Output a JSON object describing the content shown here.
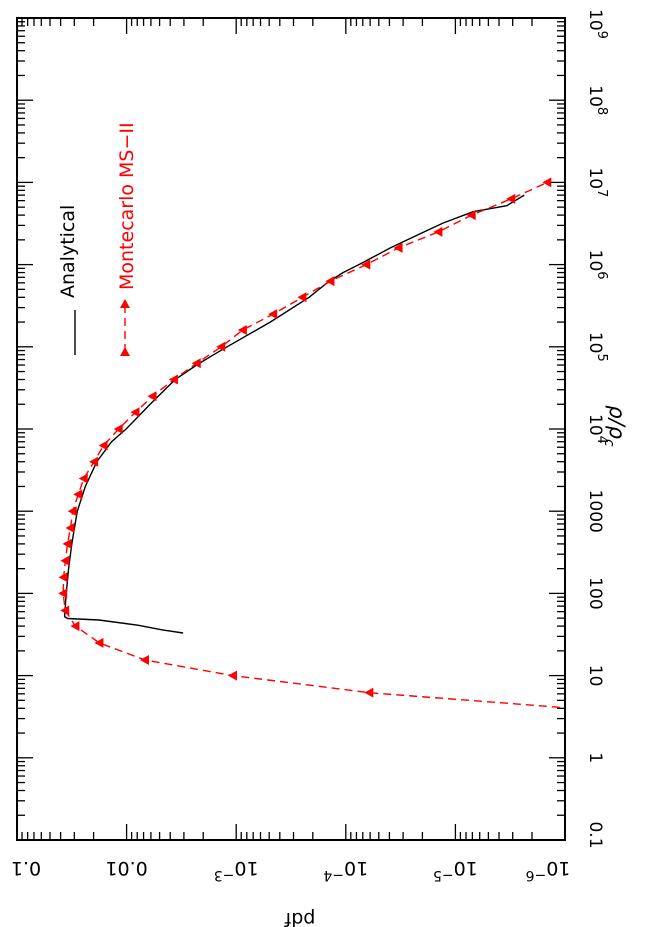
{
  "chart_data": {
    "type": "line",
    "xlabel": "pdf",
    "ylabel_main": "ρ/ρ",
    "ylabel_sub": "c",
    "x_scale": "log",
    "y_scale": "log",
    "xlim": [
      0.1,
      1e-06
    ],
    "ylim": [
      0.1,
      1000000000.0
    ],
    "x_ticks": [
      {
        "value": 0.1,
        "label": "0.1",
        "exp": ""
      },
      {
        "value": 0.01,
        "label": "0.01",
        "exp": ""
      },
      {
        "value": 0.001,
        "label": "10",
        "exp": "−3"
      },
      {
        "value": 0.0001,
        "label": "10",
        "exp": "−4"
      },
      {
        "value": 1e-05,
        "label": "10",
        "exp": "−5"
      },
      {
        "value": 1e-06,
        "label": "10",
        "exp": "−6"
      }
    ],
    "y_ticks": [
      {
        "value": 0.1,
        "label": "0.1",
        "exp": ""
      },
      {
        "value": 1,
        "label": "1",
        "exp": ""
      },
      {
        "value": 10,
        "label": "10",
        "exp": ""
      },
      {
        "value": 100,
        "label": "100",
        "exp": ""
      },
      {
        "value": 1000,
        "label": "1000",
        "exp": ""
      },
      {
        "value": 10000.0,
        "label": "10",
        "exp": "4"
      },
      {
        "value": 100000.0,
        "label": "10",
        "exp": "5"
      },
      {
        "value": 1000000.0,
        "label": "10",
        "exp": "6"
      },
      {
        "value": 10000000.0,
        "label": "10",
        "exp": "7"
      },
      {
        "value": 100000000.0,
        "label": "10",
        "exp": "8"
      },
      {
        "value": 1000000000.0,
        "label": "10",
        "exp": "9"
      }
    ],
    "legend_position": "top-left",
    "series": [
      {
        "name": "Analytical",
        "color": "#000000",
        "style": "solid",
        "marker": "none",
        "points": [
          [
            0.00305,
            33
          ],
          [
            0.0047,
            36
          ],
          [
            0.0079,
            41
          ],
          [
            0.0179,
            47.5
          ],
          [
            0.0345,
            49.5
          ],
          [
            0.0367,
            52
          ],
          [
            0.0366,
            57
          ],
          [
            0.0356,
            100
          ],
          [
            0.0338,
            200
          ],
          [
            0.0316,
            400
          ],
          [
            0.0282,
            1000
          ],
          [
            0.0238,
            2000
          ],
          [
            0.0187,
            4000
          ],
          [
            0.0137,
            7000
          ],
          [
            0.0101,
            10000
          ],
          [
            0.0061,
            20000
          ],
          [
            0.0036,
            40000
          ],
          [
            0.0023,
            60000
          ],
          [
            0.00161,
            80000
          ],
          [
            0.00121,
            100000
          ],
          [
            0.00049,
            200000
          ],
          [
            0.000216,
            400000
          ],
          [
            0.000148,
            600000
          ],
          [
            0.000106,
            800000
          ],
          [
            7.6e-05,
            1000000.0
          ],
          [
            3.9e-05,
            1600000.0
          ],
          [
            2.05e-05,
            2400000.0
          ],
          [
            1.3e-05,
            3200000.0
          ],
          [
            6.9e-06,
            4400000.0
          ],
          [
            3.4e-06,
            5200000.0
          ],
          [
            2.35e-06,
            7000000.0
          ]
        ]
      },
      {
        "name": "Montecarlo MS−II",
        "color": "#ff0000",
        "style": "dashed",
        "marker": "triangle-left",
        "points": [
          [
            8.5e-07,
            4
          ],
          [
            6.1e-05,
            6.2
          ],
          [
            0.00107,
            10
          ],
          [
            0.0068,
            15.5
          ],
          [
            0.0177,
            25
          ],
          [
            0.0293,
            40
          ],
          [
            0.0363,
            62
          ],
          [
            0.0379,
            100
          ],
          [
            0.0376,
            157
          ],
          [
            0.0362,
            250
          ],
          [
            0.0346,
            400
          ],
          [
            0.0325,
            625
          ],
          [
            0.031,
            1000
          ],
          [
            0.0276,
            1600
          ],
          [
            0.0246,
            2500
          ],
          [
            0.0198,
            4000
          ],
          [
            0.0162,
            6300
          ],
          [
            0.0118,
            10000
          ],
          [
            0.0083,
            16000
          ],
          [
            0.0058,
            25000
          ],
          [
            0.0037,
            40000
          ],
          [
            0.00229,
            63000
          ],
          [
            0.00137,
            100000
          ],
          [
            0.00087,
            160000
          ],
          [
            0.00046,
            250000
          ],
          [
            0.000249,
            400000
          ],
          [
            0.000138,
            630000
          ],
          [
            6.5e-05,
            1000000.0
          ],
          [
            3.3e-05,
            1600000.0
          ],
          [
            1.43e-05,
            2500000.0
          ],
          [
            7.1e-06,
            4000000.0
          ],
          [
            3.1e-06,
            6300000.0
          ],
          [
            1.45e-06,
            10000000.0
          ]
        ]
      }
    ]
  }
}
